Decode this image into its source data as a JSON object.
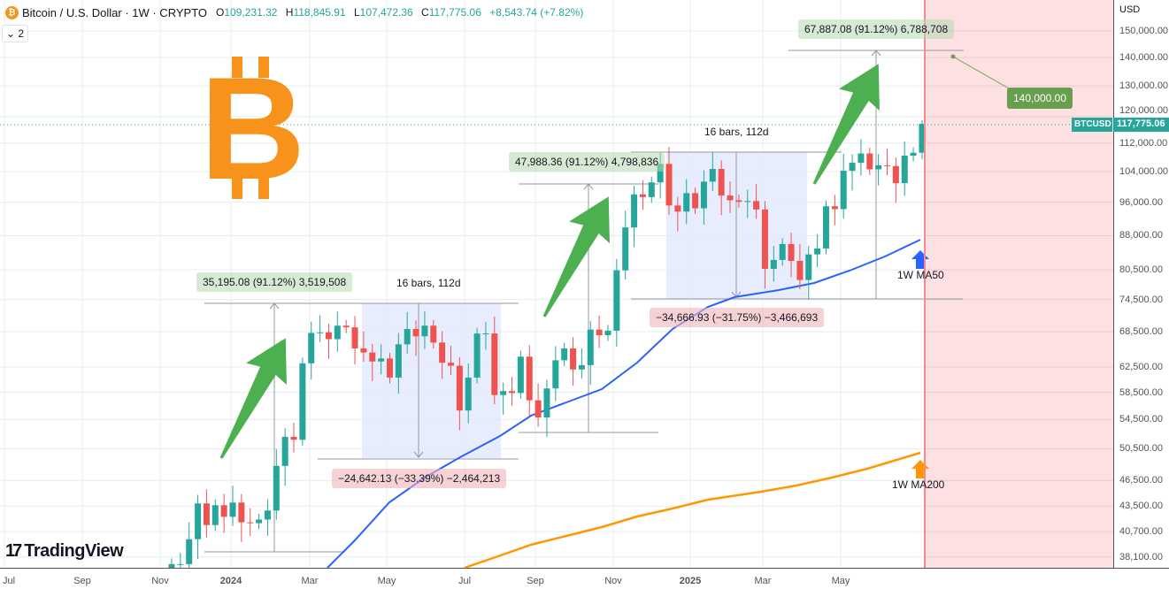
{
  "header": {
    "title": "Bitcoin / U.S. Dollar · 1W · CRYPTO",
    "o_label": "O",
    "o": "109,231.32",
    "h_label": "H",
    "h": "118,845.91",
    "l_label": "L",
    "l": "107,472.36",
    "c_label": "C",
    "c": "117,775.06",
    "change": "+8,543.74 (+7.82%)",
    "coin_symbol": "₿"
  },
  "legend_toggle": "2",
  "axis": {
    "currency": "USD",
    "symbol": "BTCUSD",
    "last_price": "117,775.06"
  },
  "logo": {
    "text": "TradingView",
    "mark": "17"
  },
  "annotations": {
    "rise1": "35,195.08 (91.12%) 3,519,508",
    "range1": "16 bars, 112d",
    "drop1": "−24,642.13 (−33.39%) −2,464,213",
    "rise2": "47,988.36 (91.12%) 4,798,836",
    "range2": "16 bars, 112d",
    "drop2": "−34,666.93 (−31.75%) −3,466,693",
    "rise3": "67,887.08 (91.12%) 6,788,708",
    "target": "140,000.00",
    "ma50": "1W MA50",
    "ma200": "1W MA200"
  },
  "colors": {
    "up": "#26a69a",
    "down": "#ef5350",
    "ma50": "#2962ff",
    "ma200": "#ff9800",
    "arrow": "#4caf50",
    "btc": "#f7931a"
  },
  "chart_data": {
    "type": "candlestick",
    "title": "Bitcoin / U.S. Dollar · 1W · CRYPTO",
    "scale": "log",
    "y_ticks": [
      150000,
      140000,
      130000,
      120000,
      112000,
      104000,
      96000,
      88000,
      80500,
      74500,
      68500,
      62500,
      58500,
      54500,
      50500,
      46500,
      43500,
      40700,
      38100
    ],
    "y_tick_labels": [
      "150,000.00",
      "140,000.00",
      "130,000.00",
      "120,000.00",
      "112,000.00",
      "104,000.00",
      "96,000.00",
      "88,000.00",
      "80,500.00",
      "74,500.00",
      "68,500.00",
      "62,500.00",
      "58,500.00",
      "54,500.00",
      "50,500.00",
      "46,500.00",
      "43,500.00",
      "40,700.00",
      "38,100.00"
    ],
    "x_tick_labels": [
      "Jul",
      "Sep",
      "Nov",
      "2024",
      "Mar",
      "May",
      "Jul",
      "Sep",
      "Nov",
      "2025",
      "Mar",
      "May"
    ],
    "first_week_offset": -7,
    "first_open": 36.6,
    "weekly_close_k": [
      37.4,
      37.4,
      39.9,
      43.8,
      41.4,
      43.6,
      42.3,
      43.9,
      41.7,
      41.6,
      42.0,
      43.0,
      48.3,
      52.1,
      51.7,
      63.1,
      68.3,
      68.4,
      67.2,
      69.6,
      69.3,
      65.6,
      64.9,
      63.4,
      63.9,
      60.8,
      66.3,
      69.0,
      67.7,
      69.6,
      66.6,
      63.2,
      62.7,
      55.8,
      60.8,
      68.2,
      68.2,
      58.1,
      58.7,
      58.4,
      64.2,
      57.3,
      54.8,
      59.1,
      63.6,
      65.6,
      62.1,
      62.8,
      68.9,
      67.9,
      68.7,
      80.4,
      89.9,
      98.0,
      97.3,
      101.1,
      106.1,
      95.2,
      93.7,
      98.3,
      94.5,
      101.3,
      104.7,
      97.7,
      96.5,
      96.1,
      96.3,
      94.2,
      80.7,
      82.6,
      86.1,
      82.4,
      78.4,
      83.8,
      85.1,
      95.0,
      94.3,
      104.2,
      106.4,
      109.0,
      104.6,
      105.7,
      105.5,
      100.9,
      108.4,
      109.2,
      117.775
    ],
    "last_candle": {
      "open": 109231.32,
      "high": 118845.91,
      "low": 107472.36,
      "close": 117775.06
    },
    "projection_target": 140000
  }
}
